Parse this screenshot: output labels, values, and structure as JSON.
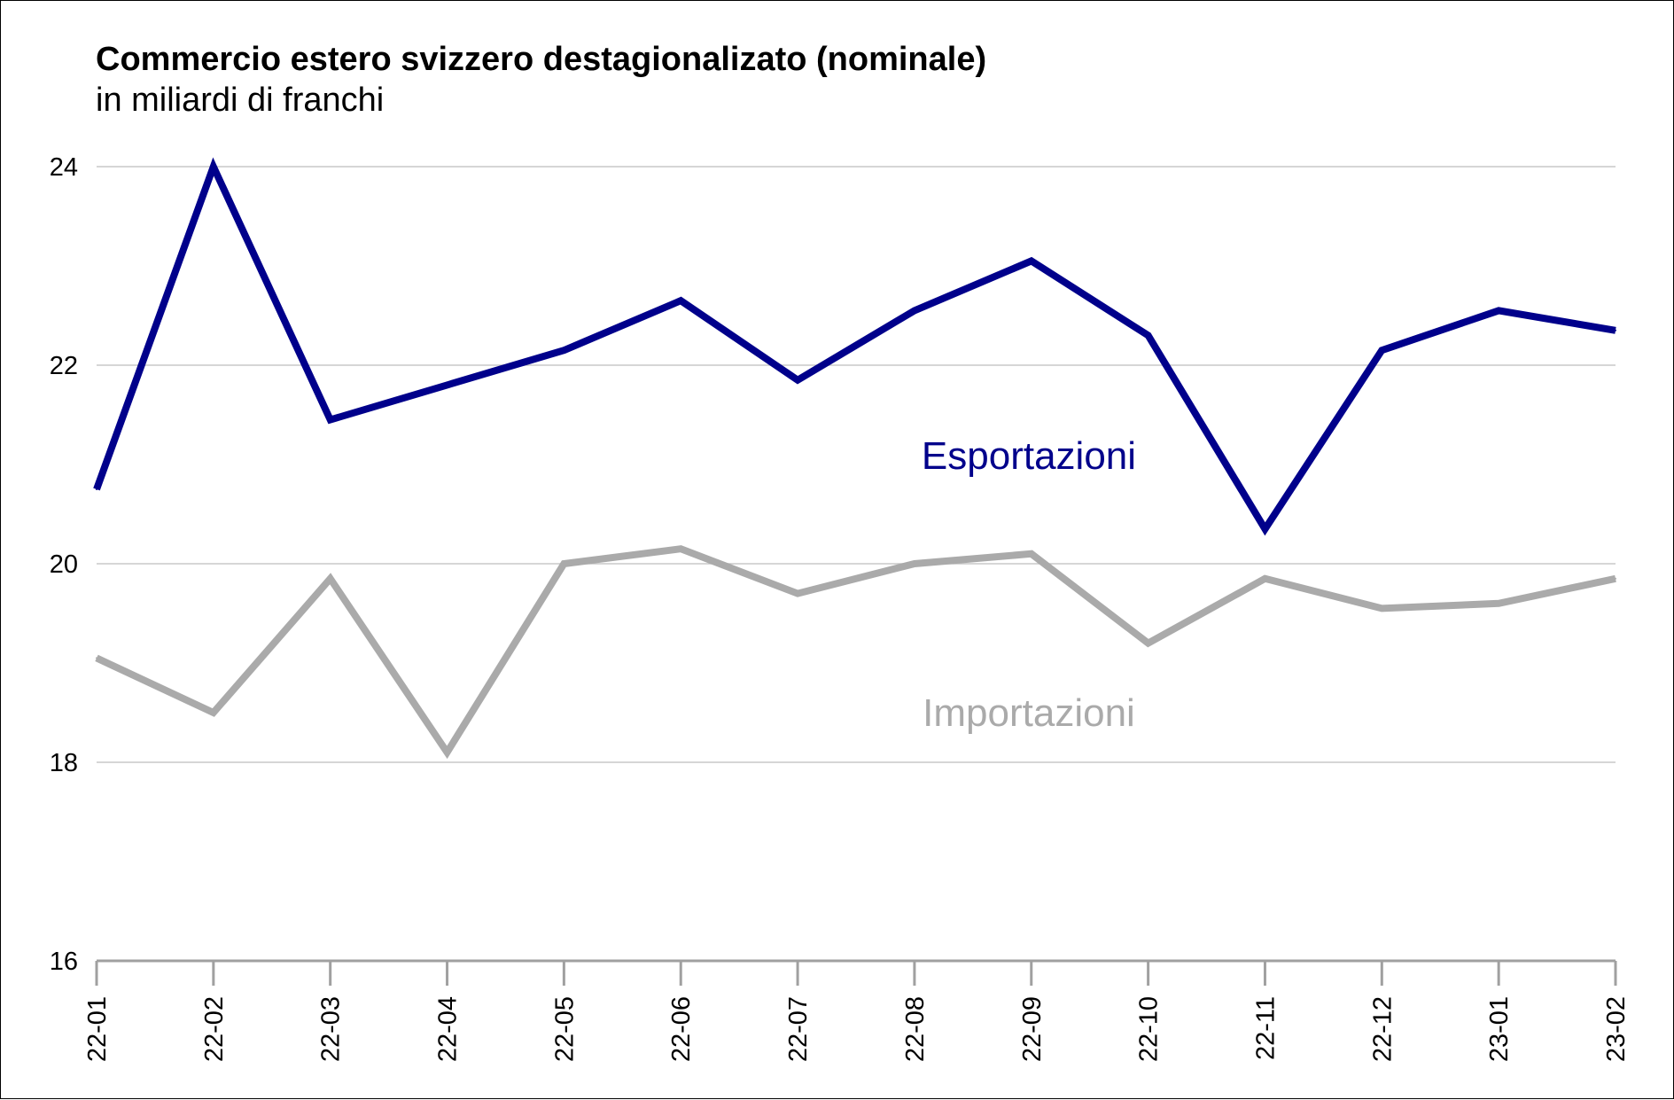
{
  "chart_data": {
    "type": "line",
    "title": "Commercio estero svizzero destagionalizato (nominale)",
    "subtitle": "in miliardi di franchi",
    "categories": [
      "22-01",
      "22-02",
      "22-03",
      "22-04",
      "22-05",
      "22-06",
      "22-07",
      "22-08",
      "22-09",
      "22-10",
      "22-11",
      "22-12",
      "23-01",
      "23-02"
    ],
    "ylim": [
      16,
      24
    ],
    "yticks": [
      "16",
      "18",
      "20",
      "22",
      "24"
    ],
    "grid": "horizontal",
    "series": [
      {
        "name": "Esportazioni",
        "color": "#00008b",
        "values": [
          20.75,
          24.0,
          21.45,
          21.8,
          22.15,
          22.65,
          21.85,
          22.55,
          23.05,
          22.3,
          20.35,
          22.15,
          22.55,
          22.35
        ]
      },
      {
        "name": "Importazioni",
        "color": "#aaaaaa",
        "values": [
          19.05,
          18.5,
          19.85,
          18.1,
          20.0,
          20.15,
          19.7,
          20.0,
          20.1,
          19.2,
          19.85,
          19.55,
          19.6,
          19.85
        ]
      }
    ]
  }
}
